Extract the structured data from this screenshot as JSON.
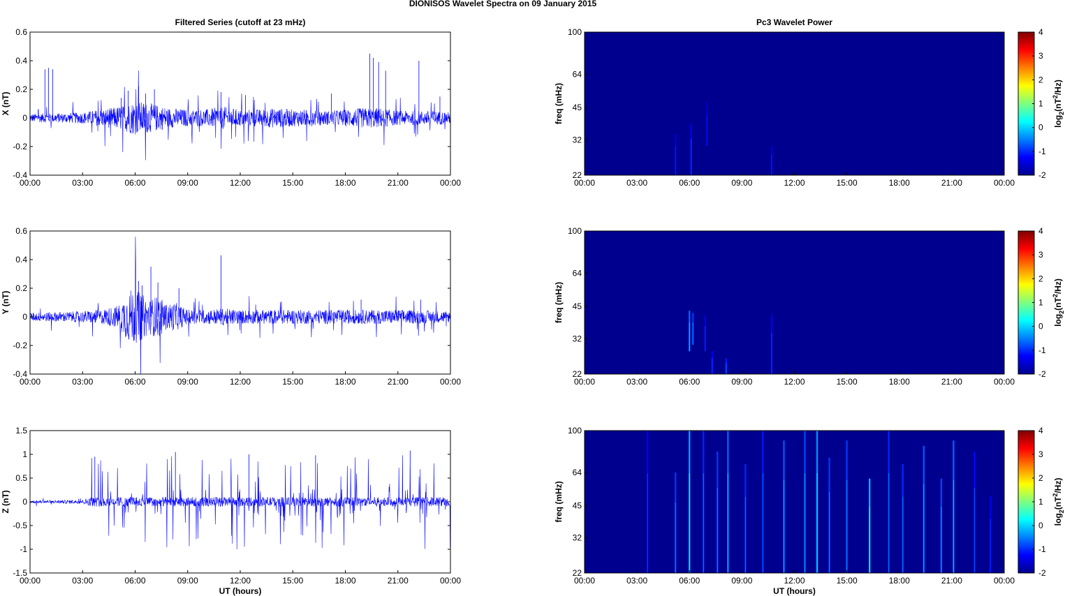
{
  "figure_title": "DIONISOS Wavelet Spectra on 09 January   2015",
  "colors": {
    "signal": "#0000ff",
    "spectrogram_background": "#00008f",
    "axis": "#000000"
  },
  "chart_data": [
    {
      "type": "line",
      "title": "Filtered Series (cutoff at 23 mHz)",
      "xlabel": "",
      "ylabel": "X (nT)",
      "xticks": [
        "00:00",
        "03:00",
        "06:00",
        "09:00",
        "12:00",
        "15:00",
        "18:00",
        "21:00",
        "00:00"
      ],
      "xlim_hours": [
        0,
        24
      ],
      "ylim": [
        -0.4,
        0.6
      ],
      "yticks": [
        "0.6",
        "0.4",
        "0.2",
        "0",
        "-0.2",
        "-0.4"
      ],
      "grid": false,
      "series": [
        {
          "color": "#0000ff",
          "envelope_hours": [
            0,
            2,
            3,
            4,
            5,
            6,
            7,
            8,
            9,
            10,
            11,
            12,
            13,
            14,
            15,
            16,
            17,
            18,
            19,
            20,
            21,
            22,
            23,
            24
          ],
          "envelope_amplitude": [
            0.03,
            0.035,
            0.04,
            0.06,
            0.08,
            0.12,
            0.1,
            0.07,
            0.06,
            0.06,
            0.08,
            0.06,
            0.06,
            0.07,
            0.06,
            0.06,
            0.05,
            0.06,
            0.07,
            0.07,
            0.05,
            0.05,
            0.05,
            0.04
          ],
          "spikes_hours": [
            0.85,
            1.05,
            1.3,
            5.2,
            5.6,
            6.2,
            6.6,
            7.1,
            10.9,
            12.3,
            17.2,
            19.4,
            19.6,
            19.9,
            20.3,
            22.2,
            23.4
          ],
          "spikes_values": [
            0.34,
            0.35,
            0.34,
            0.14,
            0.19,
            0.22,
            0.17,
            0.2,
            0.18,
            0.16,
            0.17,
            0.45,
            0.42,
            0.39,
            0.33,
            0.4,
            0.15
          ]
        }
      ]
    },
    {
      "type": "line",
      "title": "",
      "xlabel": "",
      "ylabel": "Y (nT)",
      "xticks": [
        "00:00",
        "03:00",
        "06:00",
        "09:00",
        "12:00",
        "15:00",
        "18:00",
        "21:00",
        "00:00"
      ],
      "xlim_hours": [
        0,
        24
      ],
      "ylim": [
        -0.4,
        0.6
      ],
      "yticks": [
        "0.6",
        "0.4",
        "0.2",
        "0",
        "-0.2",
        "-0.4"
      ],
      "grid": false,
      "series": [
        {
          "color": "#0000ff",
          "envelope_hours": [
            0,
            2,
            3,
            4,
            5,
            5.8,
            6.3,
            6.8,
            7.3,
            7.8,
            8.3,
            9,
            10,
            11,
            12,
            15,
            18,
            21,
            24
          ],
          "envelope_amplitude": [
            0.03,
            0.035,
            0.04,
            0.05,
            0.08,
            0.2,
            0.17,
            0.12,
            0.15,
            0.09,
            0.1,
            0.05,
            0.05,
            0.06,
            0.05,
            0.05,
            0.05,
            0.05,
            0.04
          ],
          "spikes_hours": [
            6.2,
            6.4,
            6.9,
            7.3,
            8.5,
            10.9,
            18.9,
            22.3
          ],
          "spikes_values": [
            0.25,
            0.22,
            0.35,
            0.24,
            0.2,
            0.43,
            0.12,
            0.12
          ]
        }
      ]
    },
    {
      "type": "line",
      "title": "",
      "xlabel": "UT (hours)",
      "ylabel": "Z (nT)",
      "xticks": [
        "00:00",
        "03:00",
        "06:00",
        "09:00",
        "12:00",
        "15:00",
        "18:00",
        "21:00",
        "00:00"
      ],
      "xlim_hours": [
        0,
        24
      ],
      "ylim": [
        -1.5,
        1.5
      ],
      "yticks": [
        "1.5",
        "1",
        "0.5",
        "0",
        "-0.5",
        "-1",
        "-1.5"
      ],
      "grid": false,
      "series": [
        {
          "color": "#0000ff",
          "envelope_hours": [
            0,
            3,
            3.3,
            3.6,
            24
          ],
          "envelope_amplitude": [
            0.03,
            0.04,
            0.08,
            0.1,
            0.1
          ],
          "bursts_start_hours": 3.5,
          "bursts_peak": 1.0,
          "spikes_hours": [
            3.7,
            8.3,
            12.5,
            16.3,
            21.7
          ],
          "spikes_values": [
            0.95,
            1.05,
            1.0,
            0.98,
            1.08
          ]
        }
      ]
    },
    {
      "type": "heatmap",
      "title": "Pc3 Wavelet Power",
      "xlabel": "",
      "ylabel": "freq (mHz)",
      "xticks": [
        "00:00",
        "03:00",
        "06:00",
        "09:00",
        "12:00",
        "15:00",
        "18:00",
        "21:00",
        "00:00"
      ],
      "xlim_hours": [
        0,
        24
      ],
      "ylim": [
        22,
        100
      ],
      "y_scale": "log",
      "yticks": [
        "100",
        "64",
        "45",
        "32",
        "22"
      ],
      "colormap": "jet",
      "colorbar_label": "log2(nT2/Hz)",
      "clim": [
        -2,
        4
      ],
      "colorbar_ticks": [
        "4",
        "3",
        "2",
        "1",
        "0",
        "-1",
        "-2"
      ],
      "features": [
        {
          "time_hours": 5.2,
          "fmin_mHz": 22,
          "fmax_mHz": 34,
          "power": -1.5
        },
        {
          "time_hours": 6.1,
          "fmin_mHz": 22,
          "fmax_mHz": 38,
          "power": -1.3
        },
        {
          "time_hours": 7.0,
          "fmin_mHz": 30,
          "fmax_mHz": 48,
          "power": -1.6
        },
        {
          "time_hours": 10.7,
          "fmin_mHz": 22,
          "fmax_mHz": 30,
          "power": -1.5
        }
      ]
    },
    {
      "type": "heatmap",
      "title": "",
      "xlabel": "",
      "ylabel": "freq (mHz)",
      "xticks": [
        "00:00",
        "03:00",
        "06:00",
        "09:00",
        "12:00",
        "15:00",
        "18:00",
        "21:00",
        "00:00"
      ],
      "xlim_hours": [
        0,
        24
      ],
      "ylim": [
        22,
        100
      ],
      "y_scale": "log",
      "yticks": [
        "100",
        "64",
        "45",
        "32",
        "22"
      ],
      "colormap": "jet",
      "colorbar_label": "log2(nT2/Hz)",
      "clim": [
        -2,
        4
      ],
      "colorbar_ticks": [
        "4",
        "3",
        "2",
        "1",
        "0",
        "-1",
        "-2"
      ],
      "features": [
        {
          "time_hours": 6.0,
          "fmin_mHz": 28,
          "fmax_mHz": 43,
          "power": -0.6
        },
        {
          "time_hours": 6.2,
          "fmin_mHz": 30,
          "fmax_mHz": 42,
          "power": -0.9
        },
        {
          "time_hours": 6.9,
          "fmin_mHz": 28,
          "fmax_mHz": 41,
          "power": -1.4
        },
        {
          "time_hours": 7.3,
          "fmin_mHz": 22,
          "fmax_mHz": 28,
          "power": -1.3
        },
        {
          "time_hours": 8.1,
          "fmin_mHz": 22,
          "fmax_mHz": 26,
          "power": -1.1
        },
        {
          "time_hours": 10.7,
          "fmin_mHz": 22,
          "fmax_mHz": 41,
          "power": -1.3
        }
      ]
    },
    {
      "type": "heatmap",
      "title": "",
      "xlabel": "UT (hours)",
      "ylabel": "freq (mHz)",
      "xticks": [
        "00:00",
        "03:00",
        "06:00",
        "09:00",
        "12:00",
        "15:00",
        "18:00",
        "21:00",
        "00:00"
      ],
      "xlim_hours": [
        0,
        24
      ],
      "ylim": [
        22,
        100
      ],
      "y_scale": "log",
      "yticks": [
        "100",
        "64",
        "45",
        "32",
        "22"
      ],
      "colormap": "jet",
      "colorbar_label": "log2(nT2/Hz)",
      "clim": [
        -2,
        4
      ],
      "colorbar_ticks": [
        "4",
        "3",
        "2",
        "1",
        "0",
        "-1",
        "-2"
      ],
      "features": [
        {
          "time_hours": 3.6,
          "fmin_mHz": 22,
          "fmax_mHz": 100,
          "power": -1.3
        },
        {
          "time_hours": 5.2,
          "fmin_mHz": 22,
          "fmax_mHz": 64,
          "power": -0.9
        },
        {
          "time_hours": 6.0,
          "fmin_mHz": 22,
          "fmax_mHz": 100,
          "power": -0.2
        },
        {
          "time_hours": 6.8,
          "fmin_mHz": 22,
          "fmax_mHz": 100,
          "power": -1.0
        },
        {
          "time_hours": 7.6,
          "fmin_mHz": 22,
          "fmax_mHz": 80,
          "power": -0.9
        },
        {
          "time_hours": 8.2,
          "fmin_mHz": 22,
          "fmax_mHz": 100,
          "power": -0.6
        },
        {
          "time_hours": 9.2,
          "fmin_mHz": 22,
          "fmax_mHz": 70,
          "power": -1.0
        },
        {
          "time_hours": 10.2,
          "fmin_mHz": 22,
          "fmax_mHz": 100,
          "power": -1.1
        },
        {
          "time_hours": 11.4,
          "fmin_mHz": 22,
          "fmax_mHz": 90,
          "power": -0.7
        },
        {
          "time_hours": 12.6,
          "fmin_mHz": 22,
          "fmax_mHz": 100,
          "power": -0.8
        },
        {
          "time_hours": 13.3,
          "fmin_mHz": 22,
          "fmax_mHz": 100,
          "power": -0.3
        },
        {
          "time_hours": 14.0,
          "fmin_mHz": 22,
          "fmax_mHz": 75,
          "power": -0.9
        },
        {
          "time_hours": 15.0,
          "fmin_mHz": 22,
          "fmax_mHz": 90,
          "power": -0.9
        },
        {
          "time_hours": 16.3,
          "fmin_mHz": 22,
          "fmax_mHz": 60,
          "power": -0.1
        },
        {
          "time_hours": 17.4,
          "fmin_mHz": 22,
          "fmax_mHz": 100,
          "power": -1.0
        },
        {
          "time_hours": 18.2,
          "fmin_mHz": 22,
          "fmax_mHz": 70,
          "power": -1.0
        },
        {
          "time_hours": 19.4,
          "fmin_mHz": 22,
          "fmax_mHz": 85,
          "power": -0.7
        },
        {
          "time_hours": 20.4,
          "fmin_mHz": 22,
          "fmax_mHz": 60,
          "power": -0.8
        },
        {
          "time_hours": 21.1,
          "fmin_mHz": 22,
          "fmax_mHz": 90,
          "power": -0.6
        },
        {
          "time_hours": 22.3,
          "fmin_mHz": 22,
          "fmax_mHz": 80,
          "power": -1.2
        },
        {
          "time_hours": 23.2,
          "fmin_mHz": 22,
          "fmax_mHz": 50,
          "power": -1.4
        }
      ]
    }
  ]
}
